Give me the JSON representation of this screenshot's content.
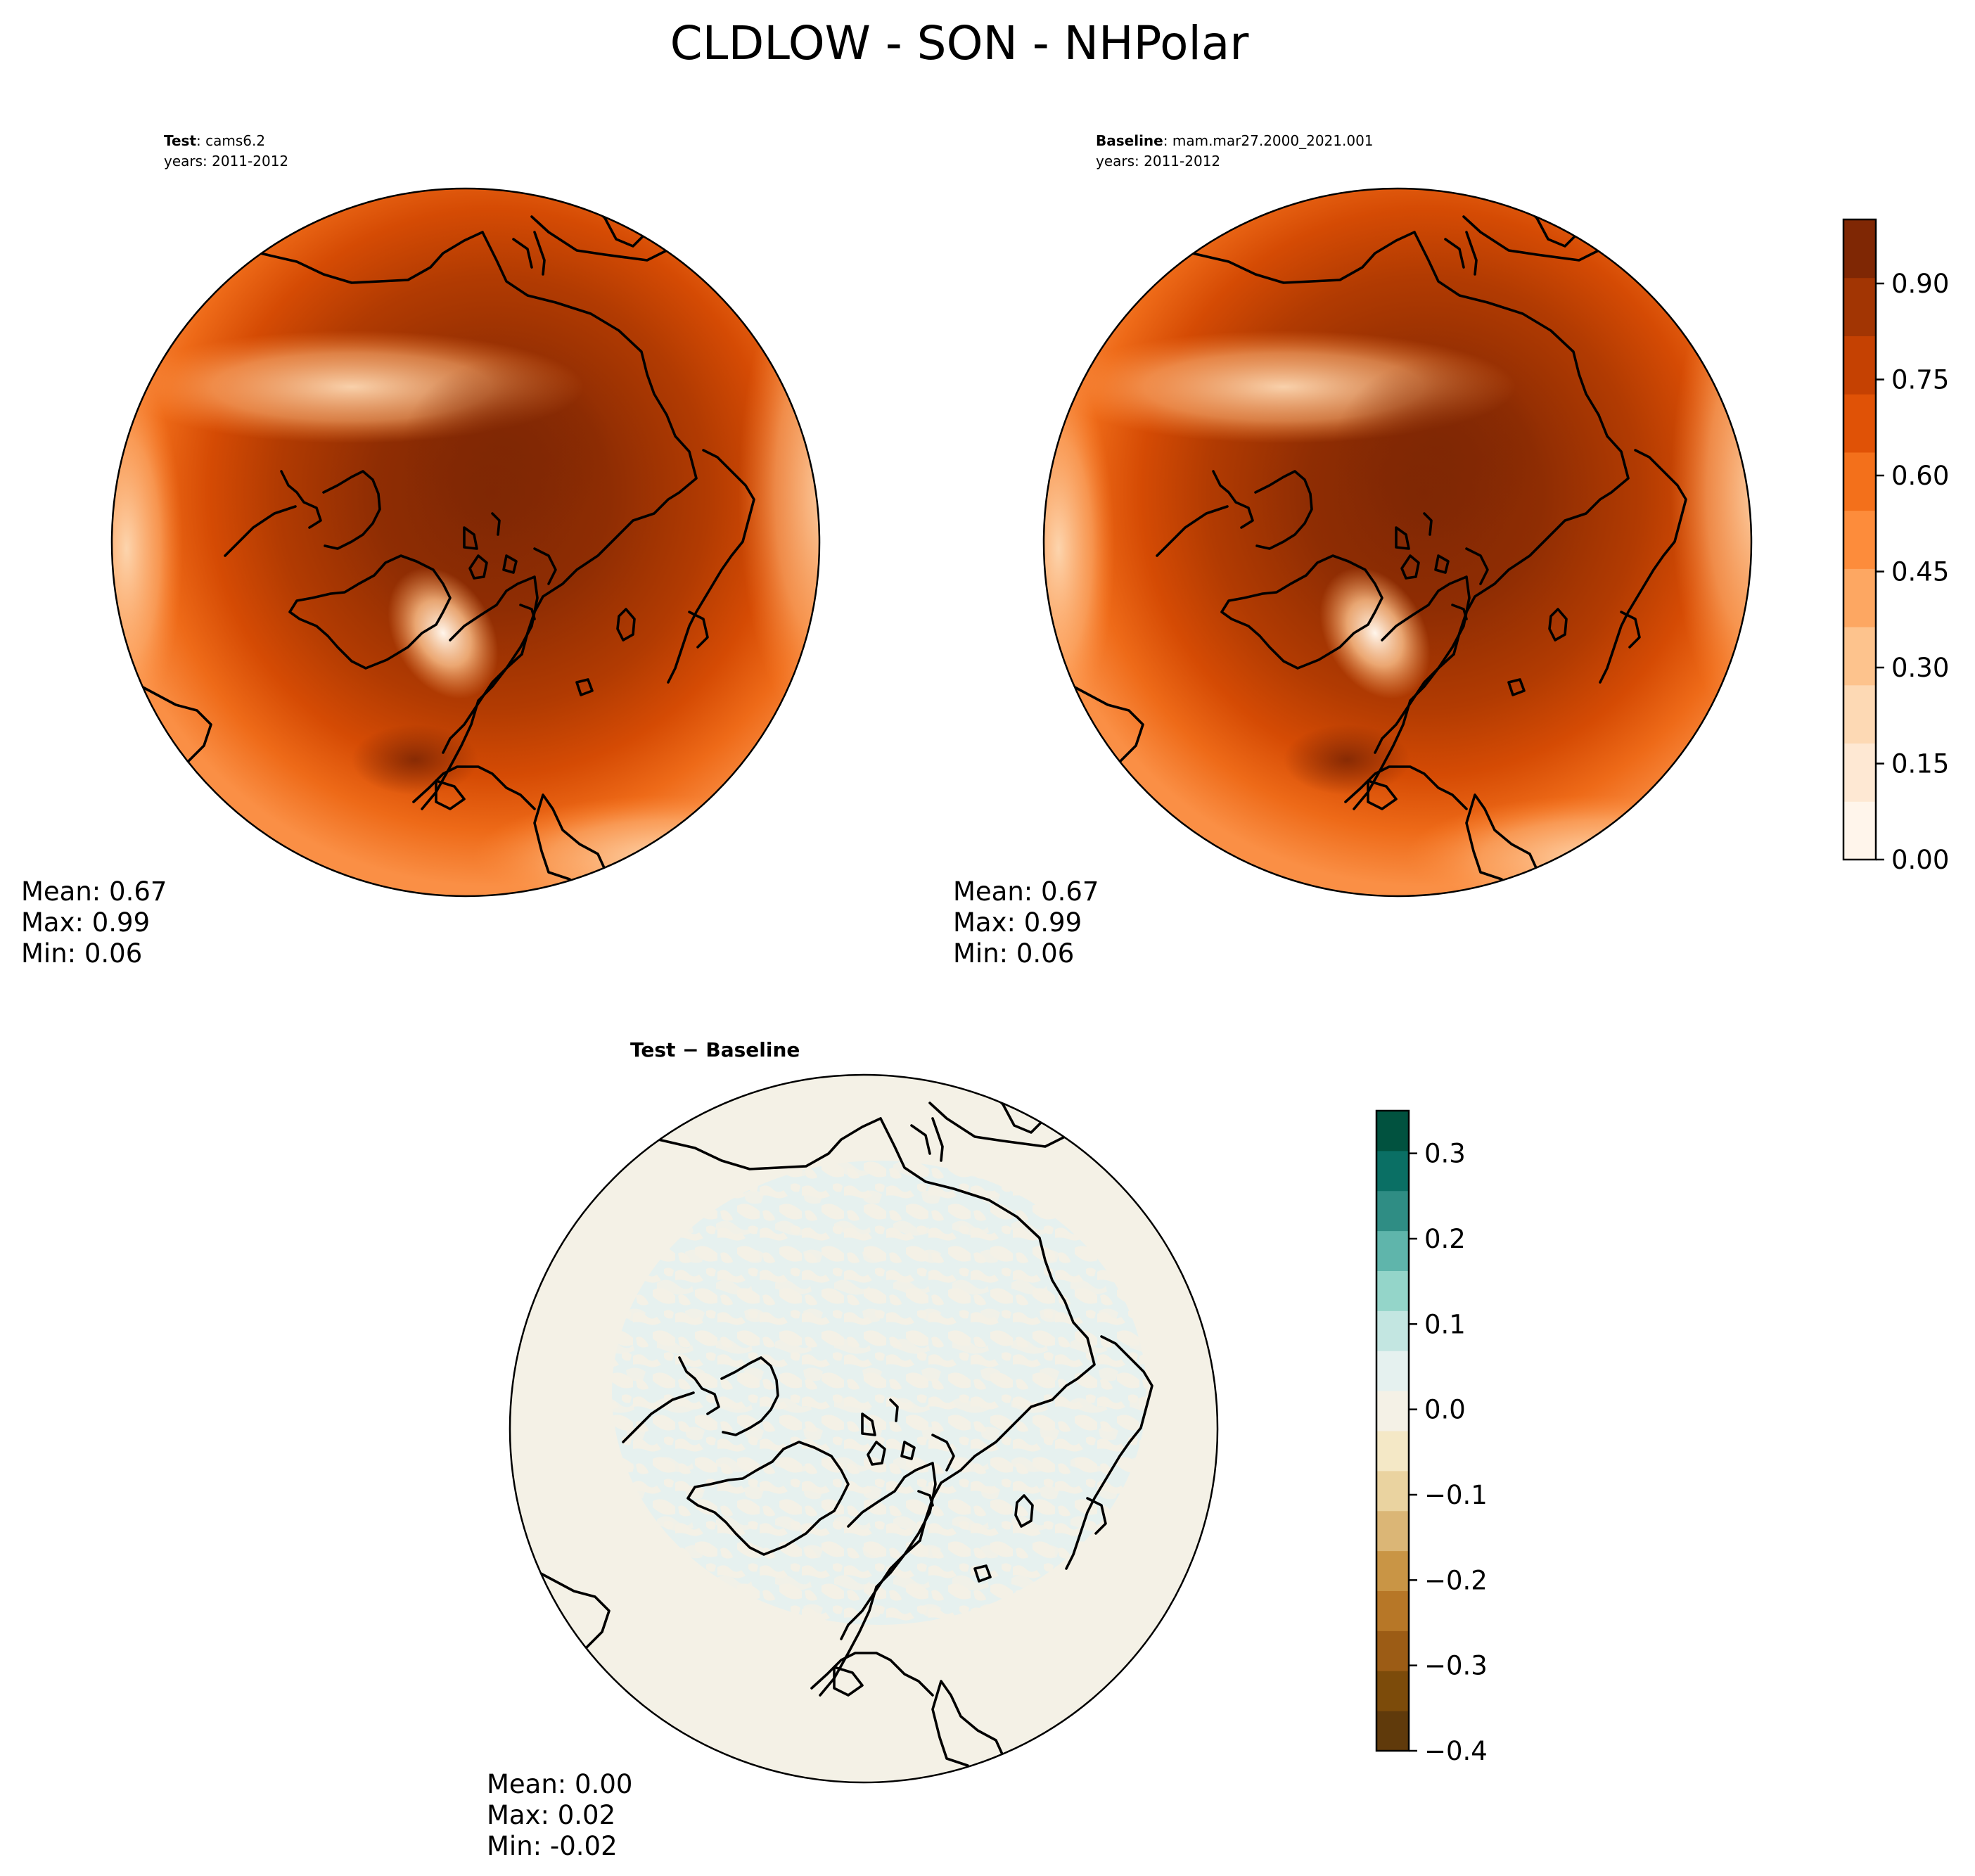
{
  "figure": {
    "title": "CLDLOW - SON - NHPolar"
  },
  "panels": {
    "test": {
      "label": "Test",
      "case_name": "cams6.2",
      "years": "years: 2011-2012",
      "stats": {
        "mean": "Mean:  0.67",
        "max": "Max:  0.99",
        "min": "Min:  0.06"
      }
    },
    "baseline": {
      "label": "Baseline",
      "case_name": "mam.mar27.2000_2021.001",
      "years": "years: 2011-2012",
      "stats": {
        "mean": "Mean:  0.67",
        "max": "Max:  0.99",
        "min": "Min:  0.06"
      }
    },
    "diff": {
      "title": "Test − Baseline",
      "stats": {
        "mean": "Mean:  0.00",
        "max": "Max:  0.02",
        "min": "Min: -0.02"
      }
    }
  },
  "colorbars": {
    "main": {
      "range": [
        0.0,
        1.0
      ],
      "ticks": [
        "0.00",
        "0.15",
        "0.30",
        "0.45",
        "0.60",
        "0.75",
        "0.90"
      ],
      "colors": [
        "#fff5eb",
        "#fee8d3",
        "#fdd9b4",
        "#fdc38d",
        "#fda762",
        "#fd8c3b",
        "#f3701b",
        "#e05206",
        "#c54102",
        "#a23503",
        "#7f2704"
      ]
    },
    "diff": {
      "range": [
        -0.4,
        0.35
      ],
      "ticks": [
        "−0.4",
        "−0.3",
        "−0.2",
        "−0.1",
        "0.0",
        "0.1",
        "0.2",
        "0.3"
      ],
      "colors": [
        "#603a0b",
        "#7c4b0a",
        "#9c5c15",
        "#b77727",
        "#c99545",
        "#dbb676",
        "#ead3a0",
        "#f4e8c6",
        "#f4f1e6",
        "#e5f1ef",
        "#c3e6e1",
        "#94d5c9",
        "#5fb5ab",
        "#2f8d84",
        "#0a6f64",
        "#01523f"
      ]
    }
  },
  "chart_data": {
    "type": "heatmap",
    "projection": "North Polar Stereographic",
    "variable": "CLDLOW",
    "season": "SON",
    "fields": [
      {
        "name": "Test",
        "case": "cams6.2",
        "mean": 0.67,
        "max": 0.99,
        "min": 0.06
      },
      {
        "name": "Baseline",
        "case": "mam.mar27.2000_2021.001",
        "mean": 0.67,
        "max": 0.99,
        "min": 0.06
      },
      {
        "name": "Test − Baseline",
        "mean": 0.0,
        "max": 0.02,
        "min": -0.02
      }
    ]
  }
}
